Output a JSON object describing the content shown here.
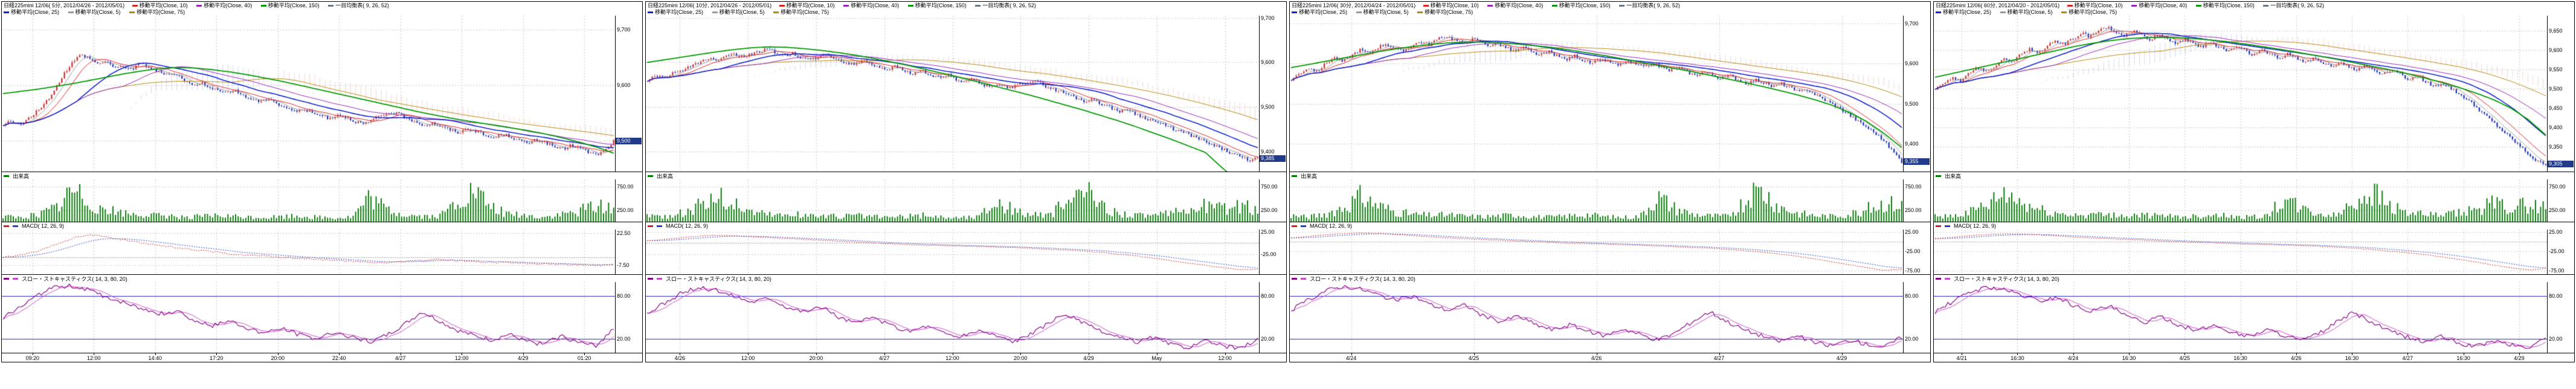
{
  "labels": {
    "volume": "出来高",
    "macd": "MACD( 12, 26, 9)",
    "stoch": "スロー・ストキャスティクス( 14, 3, 80, 20)"
  },
  "legend": {
    "line1": [
      {
        "label": "移動平均(Close, 10)",
        "color": "#dd2222"
      },
      {
        "label": "移動平均(Close, 40)",
        "color": "#9922bb"
      },
      {
        "label": "移動平均(Close, 150)",
        "color": "#009900"
      },
      {
        "label": "一目均衡表( 9, 26, 52)",
        "color": "#667788"
      }
    ],
    "line2": [
      {
        "label": "移動平均(Close, 25)",
        "color": "#1122cc"
      },
      {
        "label": "移動平均(Close, 5)",
        "color": "#999999"
      },
      {
        "label": "移動平均(Close, 75)",
        "color": "#b8860b"
      }
    ]
  },
  "colors": {
    "up_candle": "#cc3333",
    "down_candle": "#2233bb",
    "volume": "#007700",
    "macd_line": "#cc2222",
    "macd_signal": "#2244cc",
    "stoch_k": "#880088",
    "stoch_d": "#cc44cc",
    "stoch_band": "#2222cc",
    "grid": "#c8c8c8",
    "cloud_up": "#9aa3e0",
    "cloud_down": "#e0a39a",
    "last_box": "#223a8c"
  },
  "chart_data": [
    {
      "type": "candlestick",
      "title": "日経225mini 12/06( 5分, 2012/04/26 - 2012/05/01)",
      "x_labels": [
        "09:20",
        "12:00",
        "14:40",
        "17:20",
        "20:00",
        "22:40",
        "4/27",
        "12:00",
        "4/29",
        "01:20"
      ],
      "price": {
        "ylim": [
          9445,
          9725
        ],
        "axis_labels": [
          "9,700",
          "9,600",
          "9,500"
        ],
        "last": "9,500",
        "closes": [
          9530,
          9535,
          9528,
          9540,
          9555,
          9570,
          9590,
          9620,
          9640,
          9655,
          9650,
          9638,
          9645,
          9630,
          9635,
          9628,
          9640,
          9632,
          9625,
          9618,
          9622,
          9610,
          9600,
          9605,
          9598,
          9590,
          9585,
          9592,
          9580,
          9575,
          9570,
          9578,
          9565,
          9560,
          9552,
          9558,
          9550,
          9545,
          9540,
          9548,
          9542,
          9535,
          9530,
          9538,
          9545,
          9552,
          9548,
          9540,
          9535,
          9528,
          9532,
          9525,
          9520,
          9515,
          9522,
          9518,
          9510,
          9505,
          9512,
          9508,
          9500,
          9495,
          9502,
          9498,
          9490,
          9485,
          9492,
          9488,
          9480,
          9475,
          9482,
          9500
        ],
        "ma150": [
          9585,
          9589,
          9593,
          9598,
          9603,
          9609,
          9615,
          9621,
          9626,
          9630,
          9632,
          9631,
          9628,
          9624,
          9619,
          9613,
          9607,
          9600,
          9593,
          9586,
          9579,
          9572,
          9565,
          9558,
          9551,
          9545,
          9539,
          9534,
          9529,
          9524,
          9519,
          9513,
          9506,
          9498,
          9489,
          9478
        ]
      },
      "volume": {
        "ylim": [
          0,
          900
        ],
        "axis_labels": [
          "750.00",
          "250.00"
        ],
        "values": [
          120,
          90,
          160,
          300,
          700,
          420,
          260,
          180,
          150,
          130,
          120,
          110,
          130,
          120,
          100,
          95,
          110,
          130,
          100,
          85,
          100,
          520,
          260,
          150,
          120,
          110,
          420,
          650,
          300,
          170,
          130,
          100,
          150,
          250,
          380,
          300
        ]
      },
      "macd": {
        "ylim": [
          -16,
          26
        ],
        "axis_labels": [
          "22.50",
          "-7.50"
        ],
        "values": [
          0,
          2,
          6,
          12,
          18,
          21,
          19,
          16,
          13,
          11,
          9,
          7,
          5,
          3,
          2,
          1,
          0,
          -1,
          -2,
          -3,
          -4,
          -5,
          -5,
          -4,
          -3,
          -2,
          -3,
          -4,
          -5,
          -5,
          -6,
          -6,
          -7,
          -7,
          -8,
          -6
        ]
      },
      "stoch": {
        "ylim": [
          0,
          100
        ],
        "axis_labels": [
          "80.00",
          "20.00"
        ],
        "hlines": [
          80,
          20
        ],
        "values": [
          50,
          65,
          82,
          93,
          95,
          88,
          78,
          70,
          62,
          55,
          60,
          45,
          38,
          45,
          35,
          28,
          35,
          25,
          20,
          30,
          22,
          15,
          25,
          40,
          58,
          45,
          32,
          24,
          18,
          26,
          16,
          12,
          24,
          14,
          10,
          35
        ]
      }
    },
    {
      "type": "candlestick",
      "title": "日経225mini 12/06( 10分, 2012/04/26 - 2012/05/01)",
      "x_labels": [
        "4/26",
        "12:00",
        "20:00",
        "4/27",
        "12:00",
        "20:00",
        "4/29",
        "May",
        "12:00"
      ],
      "price": {
        "ylim": [
          9355,
          9705
        ],
        "axis_labels": [
          "9,700",
          "9,600",
          "9,500",
          "9,400"
        ],
        "last": "9,385",
        "closes": [
          9560,
          9570,
          9565,
          9575,
          9580,
          9590,
          9600,
          9610,
          9605,
          9615,
          9620,
          9612,
          9618,
          9625,
          9630,
          9622,
          9615,
          9620,
          9610,
          9605,
          9612,
          9618,
          9608,
          9600,
          9595,
          9605,
          9598,
          9590,
          9585,
          9592,
          9580,
          9575,
          9582,
          9570,
          9565,
          9572,
          9560,
          9555,
          9562,
          9550,
          9545,
          9552,
          9540,
          9548,
          9555,
          9560,
          9550,
          9542,
          9535,
          9528,
          9520,
          9512,
          9518,
          9505,
          9498,
          9490,
          9495,
          9482,
          9475,
          9468,
          9460,
          9452,
          9445,
          9438,
          9430,
          9420,
          9412,
          9405,
          9395,
          9388,
          9380,
          9385
        ],
        "ma150": [
          9600,
          9606,
          9612,
          9618,
          9624,
          9629,
          9633,
          9635,
          9634,
          9631,
          9627,
          9622,
          9616,
          9609,
          9601,
          9593,
          9584,
          9575,
          9566,
          9556,
          9546,
          9536,
          9526,
          9515,
          9504,
          9493,
          9481,
          9469,
          9456,
          9442,
          9428,
          9413,
          9398,
          9362,
          9330,
          9300
        ]
      },
      "volume": {
        "ylim": [
          0,
          900
        ],
        "axis_labels": [
          "750.00",
          "250.00"
        ],
        "values": [
          150,
          110,
          200,
          350,
          600,
          380,
          240,
          170,
          140,
          160,
          130,
          120,
          140,
          110,
          100,
          120,
          150,
          100,
          90,
          110,
          480,
          260,
          160,
          130,
          420,
          700,
          360,
          200,
          150,
          130,
          180,
          260,
          380,
          300,
          340,
          280
        ]
      },
      "macd": {
        "ylim": [
          -70,
          30
        ],
        "axis_labels": [
          "25.00",
          "-25.00"
        ],
        "values": [
          5,
          8,
          12,
          15,
          17,
          16,
          14,
          12,
          10,
          8,
          6,
          4,
          2,
          0,
          -2,
          -4,
          -5,
          -6,
          -7,
          -8,
          -9,
          -10,
          -12,
          -14,
          -16,
          -18,
          -21,
          -25,
          -29,
          -34,
          -39,
          -45,
          -50,
          -55,
          -60,
          -58
        ]
      },
      "stoch": {
        "ylim": [
          0,
          100
        ],
        "axis_labels": [
          "80.00",
          "20.00"
        ],
        "hlines": [
          80,
          20
        ],
        "values": [
          55,
          70,
          85,
          92,
          88,
          80,
          72,
          78,
          65,
          58,
          65,
          50,
          42,
          50,
          38,
          30,
          38,
          28,
          22,
          32,
          24,
          16,
          26,
          42,
          55,
          42,
          30,
          22,
          15,
          22,
          12,
          8,
          16,
          10,
          6,
          20
        ]
      }
    },
    {
      "type": "candlestick",
      "title": "日経225mini 12/06( 30分, 2012/04/24 - 2012/05/01)",
      "x_labels": [
        "4/24",
        "4/25",
        "4/26",
        "4/27",
        "4/29"
      ],
      "price": {
        "ylim": [
          9330,
          9720
        ],
        "axis_labels": [
          "9,700",
          "9,600",
          "9,500",
          "9,400"
        ],
        "last": "9,355",
        "closes": [
          9560,
          9575,
          9590,
          9580,
          9600,
          9615,
          9605,
          9620,
          9635,
          9625,
          9640,
          9650,
          9638,
          9630,
          9645,
          9655,
          9648,
          9660,
          9670,
          9660,
          9650,
          9662,
          9655,
          9645,
          9650,
          9640,
          9630,
          9640,
          9628,
          9620,
          9630,
          9618,
          9610,
          9620,
          9608,
          9600,
          9612,
          9605,
          9595,
          9605,
          9598,
          9590,
          9600,
          9592,
          9582,
          9590,
          9580,
          9570,
          9580,
          9572,
          9562,
          9570,
          9560,
          9550,
          9560,
          9552,
          9542,
          9550,
          9540,
          9528,
          9535,
          9522,
          9510,
          9498,
          9485,
          9470,
          9455,
          9440,
          9425,
          9405,
          9380,
          9355
        ],
        "ma150": [
          9590,
          9598,
          9606,
          9614,
          9622,
          9630,
          9637,
          9643,
          9648,
          9652,
          9654,
          9654,
          9652,
          9649,
          9645,
          9640,
          9634,
          9627,
          9620,
          9612,
          9604,
          9596,
          9588,
          9580,
          9571,
          9562,
          9553,
          9543,
          9533,
          9522,
          9510,
          9496,
          9478,
          9455,
          9425,
          9390
        ]
      },
      "volume": {
        "ylim": [
          0,
          900
        ],
        "axis_labels": [
          "750.00",
          "250.00"
        ],
        "values": [
          140,
          100,
          180,
          320,
          550,
          360,
          220,
          160,
          140,
          150,
          120,
          110,
          130,
          150,
          110,
          100,
          130,
          160,
          110,
          95,
          120,
          560,
          300,
          170,
          130,
          120,
          460,
          700,
          340,
          190,
          140,
          120,
          170,
          280,
          420,
          360
        ]
      },
      "macd": {
        "ylim": [
          -85,
          32
        ],
        "axis_labels": [
          "25.00",
          "-25.00",
          "-75.00"
        ],
        "values": [
          10,
          14,
          18,
          21,
          23,
          22,
          19,
          16,
          13,
          10,
          8,
          6,
          4,
          2,
          0,
          -2,
          -4,
          -5,
          -6,
          -8,
          -9,
          -11,
          -13,
          -15,
          -17,
          -20,
          -23,
          -27,
          -32,
          -38,
          -45,
          -52,
          -60,
          -68,
          -75,
          -72
        ]
      },
      "stoch": {
        "ylim": [
          0,
          100
        ],
        "axis_labels": [
          "80.00",
          "20.00"
        ],
        "hlines": [
          80,
          20
        ],
        "values": [
          60,
          75,
          88,
          94,
          90,
          82,
          74,
          80,
          68,
          60,
          68,
          52,
          44,
          52,
          40,
          32,
          40,
          30,
          24,
          34,
          26,
          18,
          28,
          44,
          58,
          44,
          32,
          24,
          16,
          24,
          14,
          10,
          18,
          12,
          8,
          22
        ]
      }
    },
    {
      "type": "candlestick",
      "title": "日経225mini 12/06( 60分, 2012/04/20 - 2012/05/01)",
      "x_labels": [
        "4/21",
        "16:30",
        "4/24",
        "16:30",
        "4/25",
        "16:30",
        "4/26",
        "16:30",
        "4/27",
        "16:30",
        "4/29"
      ],
      "price": {
        "ylim": [
          9285,
          9690
        ],
        "axis_labels": [
          "9,650",
          "9,600",
          "9,550",
          "9,500",
          "9,450",
          "9,400",
          "9,350"
        ],
        "last": "9,305",
        "closes": [
          9500,
          9515,
          9530,
          9520,
          9540,
          9555,
          9545,
          9560,
          9580,
          9570,
          9590,
          9605,
          9595,
          9610,
          9625,
          9615,
          9630,
          9645,
          9635,
          9650,
          9660,
          9648,
          9638,
          9650,
          9640,
          9628,
          9640,
          9630,
          9618,
          9630,
          9620,
          9608,
          9620,
          9610,
          9598,
          9610,
          9600,
          9588,
          9600,
          9590,
          9578,
          9590,
          9580,
          9568,
          9580,
          9570,
          9558,
          9570,
          9560,
          9548,
          9560,
          9550,
          9538,
          9550,
          9540,
          9525,
          9535,
          9520,
          9505,
          9515,
          9500,
          9485,
          9470,
          9450,
          9430,
          9410,
          9390,
          9370,
          9350,
          9330,
          9310,
          9305
        ],
        "ma150": [
          9530,
          9540,
          9550,
          9560,
          9570,
          9580,
          9590,
          9600,
          9610,
          9618,
          9625,
          9630,
          9633,
          9634,
          9633,
          9630,
          9626,
          9621,
          9615,
          9608,
          9601,
          9593,
          9585,
          9577,
          9568,
          9559,
          9550,
          9540,
          9529,
          9517,
          9504,
          9489,
          9472,
          9450,
          9420,
          9380
        ]
      },
      "volume": {
        "ylim": [
          0,
          900
        ],
        "axis_labels": [
          "750.00",
          "250.00"
        ],
        "values": [
          160,
          120,
          210,
          360,
          620,
          400,
          260,
          180,
          150,
          170,
          140,
          130,
          150,
          120,
          110,
          130,
          160,
          110,
          100,
          120,
          500,
          280,
          170,
          140,
          440,
          720,
          380,
          210,
          160,
          140,
          190,
          280,
          400,
          340,
          380,
          320
        ]
      },
      "macd": {
        "ylim": [
          -85,
          32
        ],
        "axis_labels": [
          "25.00",
          "-25.00",
          "-75.00"
        ],
        "values": [
          8,
          12,
          16,
          19,
          21,
          20,
          18,
          15,
          12,
          10,
          8,
          6,
          4,
          2,
          0,
          -2,
          -3,
          -5,
          -6,
          -7,
          -9,
          -10,
          -12,
          -14,
          -17,
          -20,
          -24,
          -28,
          -33,
          -39,
          -46,
          -53,
          -61,
          -68,
          -74,
          -70
        ]
      },
      "stoch": {
        "ylim": [
          0,
          100
        ],
        "axis_labels": [
          "80.00",
          "20.00"
        ],
        "hlines": [
          80,
          20
        ],
        "values": [
          58,
          72,
          86,
          93,
          89,
          81,
          73,
          79,
          66,
          59,
          66,
          51,
          43,
          51,
          39,
          31,
          39,
          29,
          23,
          33,
          25,
          17,
          27,
          43,
          57,
          43,
          31,
          23,
          15,
          23,
          13,
          9,
          17,
          11,
          7,
          21
        ]
      }
    }
  ]
}
